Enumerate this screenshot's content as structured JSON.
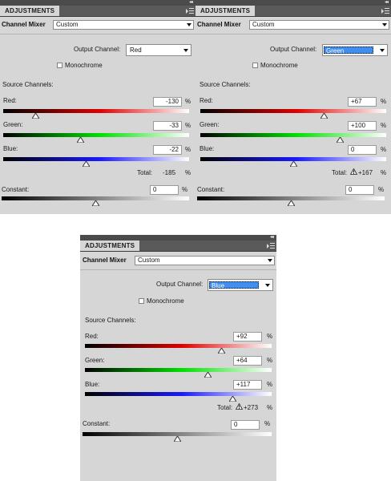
{
  "panels": [
    {
      "tab_label": "ADJUSTMENTS",
      "adjustment_name": "Channel Mixer",
      "preset_value": "Custom",
      "output_channel_label": "Output Channel:",
      "output_channel_value": "Red",
      "output_channel_highlighted": false,
      "monochrome_label": "Monochrome",
      "monochrome_checked": false,
      "source_channels_label": "Source Channels:",
      "red_label": "Red:",
      "red_value": "-130",
      "red_pct": "%",
      "green_label": "Green:",
      "green_value": "-33",
      "green_pct": "%",
      "blue_label": "Blue:",
      "blue_value": "-22",
      "blue_pct": "%",
      "total_label": "Total:",
      "total_value": "-185",
      "total_pct": "%",
      "total_warning": false,
      "constant_label": "Constant:",
      "constant_value": "0",
      "constant_pct": "%",
      "levels": {
        "red": -130,
        "green": -33,
        "blue": -22,
        "constant": 0
      }
    },
    {
      "tab_label": "ADJUSTMENTS",
      "adjustment_name": "Channel Mixer",
      "preset_value": "Custom",
      "output_channel_label": "Output Channel:",
      "output_channel_value": "Green",
      "output_channel_highlighted": true,
      "monochrome_label": "Monochrome",
      "monochrome_checked": false,
      "source_channels_label": "Source Channels:",
      "red_label": "Red:",
      "red_value": "+67",
      "red_pct": "%",
      "green_label": "Green:",
      "green_value": "+100",
      "green_pct": "%",
      "blue_label": "Blue:",
      "blue_value": "0",
      "blue_pct": "%",
      "total_label": "Total:",
      "total_value": "+167",
      "total_pct": "%",
      "total_warning": true,
      "constant_label": "Constant:",
      "constant_value": "0",
      "constant_pct": "%",
      "levels": {
        "red": 67,
        "green": 100,
        "blue": 0,
        "constant": 0
      }
    },
    {
      "tab_label": "ADJUSTMENTS",
      "adjustment_name": "Channel Mixer",
      "preset_value": "Custom",
      "output_channel_label": "Output Channel:",
      "output_channel_value": "Blue",
      "output_channel_highlighted": true,
      "monochrome_label": "Monochrome",
      "monochrome_checked": false,
      "source_channels_label": "Source Channels:",
      "red_label": "Red:",
      "red_value": "+92",
      "red_pct": "%",
      "green_label": "Green:",
      "green_value": "+64",
      "green_pct": "%",
      "blue_label": "Blue:",
      "blue_value": "+117",
      "blue_pct": "%",
      "total_label": "Total:",
      "total_value": "+273",
      "total_pct": "%",
      "total_warning": true,
      "constant_label": "Constant:",
      "constant_value": "0",
      "constant_pct": "%",
      "levels": {
        "red": 92,
        "green": 64,
        "blue": 117,
        "constant": 0
      }
    }
  ],
  "slider_range": {
    "min": -200,
    "max": 200
  },
  "colors": {
    "panel_bg": "#d6d6d6",
    "red": "#e00000",
    "green": "#00e000",
    "blue": "#1a1aff",
    "selection": "#3f8ef0",
    "warning": "#e0c000"
  },
  "icons": {
    "panel_menu": "panel-menu-icon",
    "collapse": "double-arrow-icon",
    "warning": "warning-triangle-icon",
    "thumb": "slider-thumb-icon"
  }
}
